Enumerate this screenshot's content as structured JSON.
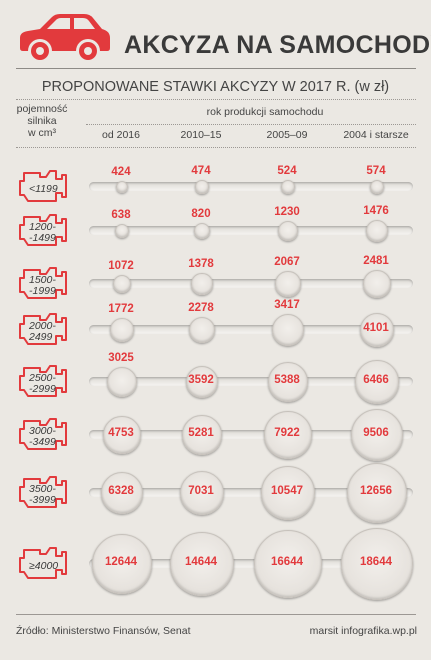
{
  "title": "AKCYZA NA SAMOCHODY",
  "subtitle": "PROPONOWANE STAWKI AKCYZY W 2017 R. (w zł)",
  "header": {
    "capacity_label_line1": "pojemność",
    "capacity_label_line2": "silnika",
    "capacity_label_line3": "w cm³",
    "year_group_label": "rok produkcji samochodu"
  },
  "footer": {
    "source": "Źródło: Ministerstwo Finansów, Senat",
    "credit": "marsit infografika.wp.pl"
  },
  "colors": {
    "accent": "#e23a3d",
    "background": "#ebe8e3",
    "text": "#3a3a3a"
  },
  "icons": {
    "car": "car-icon",
    "engine": "engine-icon"
  },
  "chart_data": {
    "type": "bubble-table",
    "categories": [
      "od 2016",
      "2010–15",
      "2005–09",
      "2004 i starsze"
    ],
    "rows": [
      {
        "capacity": "<1199",
        "capacity_lines": [
          "<1199"
        ],
        "values": [
          424,
          474,
          524,
          574
        ]
      },
      {
        "capacity": "1200–1499",
        "capacity_lines": [
          "1200-",
          "-1499"
        ],
        "values": [
          638,
          820,
          1230,
          1476
        ]
      },
      {
        "capacity": "1500–1999",
        "capacity_lines": [
          "1500-",
          "-1999"
        ],
        "values": [
          1072,
          1378,
          2067,
          2481
        ]
      },
      {
        "capacity": "2000–2499",
        "capacity_lines": [
          "2000-",
          "2499"
        ],
        "values": [
          1772,
          2278,
          3417,
          4101
        ]
      },
      {
        "capacity": "2500–2999",
        "capacity_lines": [
          "2500-",
          "-2999"
        ],
        "values": [
          3025,
          3592,
          5388,
          6466
        ]
      },
      {
        "capacity": "3000–3499",
        "capacity_lines": [
          "3000-",
          "-3499"
        ],
        "values": [
          4753,
          5281,
          7922,
          9506
        ]
      },
      {
        "capacity": "3500–3999",
        "capacity_lines": [
          "3500-",
          "-3999"
        ],
        "values": [
          6328,
          7031,
          10547,
          12656
        ]
      },
      {
        "capacity": "≥4000",
        "capacity_lines": [
          "≥4000"
        ],
        "values": [
          12644,
          14644,
          16644,
          18644
        ]
      }
    ]
  }
}
